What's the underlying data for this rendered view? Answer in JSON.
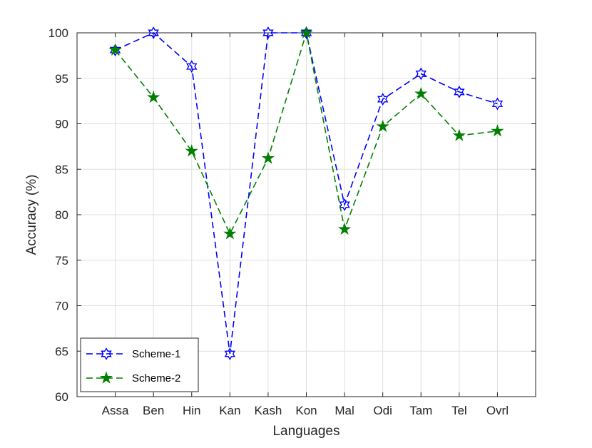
{
  "chart_data": {
    "type": "line",
    "title": "",
    "xlabel": "Languages",
    "ylabel": "Accuracy (%)",
    "categories": [
      "Assa",
      "Ben",
      "Hin",
      "Kan",
      "Kash",
      "Kon",
      "Mal",
      "Odi",
      "Tam",
      "Tel",
      "Ovrl"
    ],
    "ylim": [
      60,
      100
    ],
    "yticks": [
      60,
      65,
      70,
      75,
      80,
      85,
      90,
      95,
      100
    ],
    "grid": true,
    "legend_position": "bottom-left",
    "series": [
      {
        "name": "Scheme-1",
        "color": "#0000ff",
        "marker": "hexagram",
        "line_style": "dashed",
        "values": [
          98.1,
          100.0,
          96.3,
          64.7,
          100.0,
          100.0,
          81.1,
          92.7,
          95.5,
          93.5,
          92.2
        ]
      },
      {
        "name": "Scheme-2",
        "color": "#008000",
        "marker": "pentagram",
        "line_style": "dashed",
        "values": [
          98.1,
          92.9,
          87.0,
          77.9,
          86.2,
          100.0,
          78.4,
          89.7,
          93.3,
          88.7,
          89.2
        ]
      }
    ]
  }
}
